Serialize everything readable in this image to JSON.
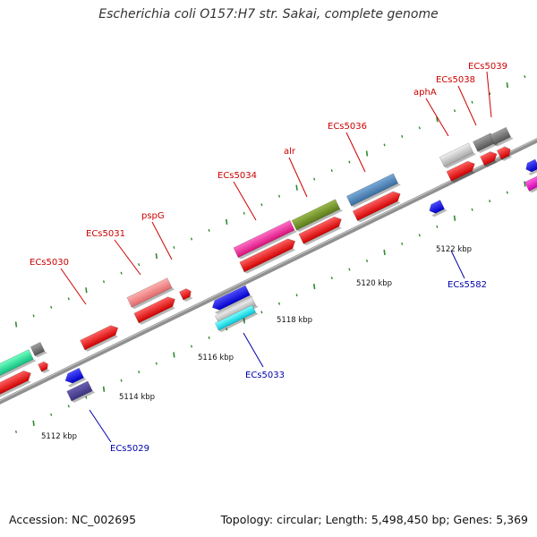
{
  "title": "Escherichia coli O157:H7 str. Sakai, complete genome",
  "footer": {
    "accession": "Accession: NC_002695",
    "summary": "Topology: circular; Length: 5,498,450 bp; Genes: 5,369"
  },
  "colors": {
    "backbone": "#808080",
    "cds_forward": "#ff0000",
    "cds_reverse": "#0000ff",
    "label_forward": "#cc0000",
    "label_reverse": "#0000aa",
    "tick": "#2e8b2e"
  },
  "ticks": [
    {
      "label": "5112 kbp",
      "pos_kbp": 5112
    },
    {
      "label": "5114 kbp",
      "pos_kbp": 5114
    },
    {
      "label": "5116 kbp",
      "pos_kbp": 5116
    },
    {
      "label": "5118 kbp",
      "pos_kbp": 5118
    },
    {
      "label": "5120 kbp",
      "pos_kbp": 5120
    },
    {
      "label": "5122 kbp",
      "pos_kbp": 5122
    }
  ],
  "gene_labels_top": [
    "ECs5030",
    "ECs5031",
    "pspG",
    "ECs5034",
    "alr",
    "ECs5036",
    "aphA",
    "ECs5038",
    "ECs5039"
  ],
  "gene_labels_bottom": [
    "ECs5029",
    "ECs5033",
    "ECs5582"
  ]
}
